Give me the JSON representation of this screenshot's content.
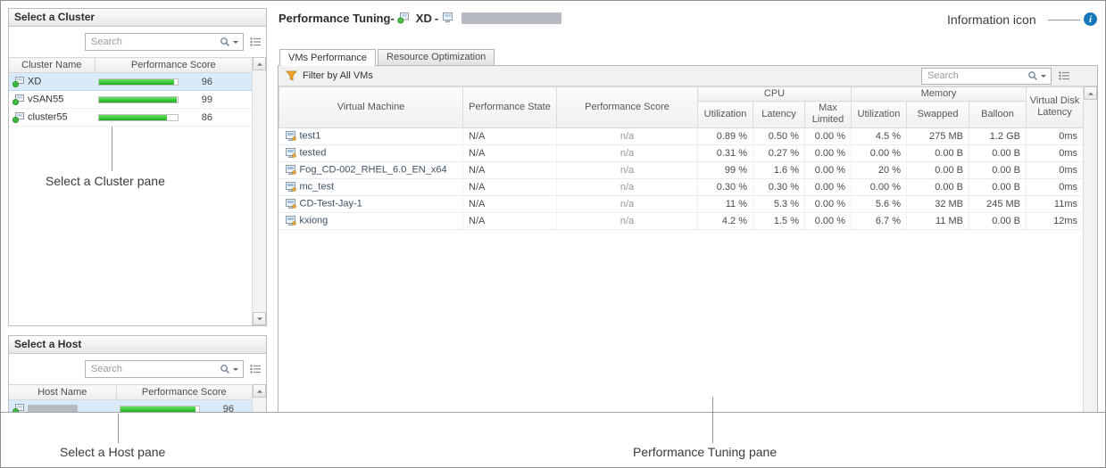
{
  "annotations": {
    "cluster_pane": "Select a Cluster pane",
    "host_pane": "Select a Host pane",
    "tuning_pane": "Performance Tuning pane",
    "info_icon": "Information icon"
  },
  "icons": {
    "info_glyph": "i"
  },
  "cluster_pane": {
    "title": "Select a Cluster",
    "search_placeholder": "Search",
    "columns": [
      "Cluster Name",
      "Performance Score"
    ],
    "rows": [
      {
        "name": "XD",
        "score": "96",
        "bar": 96,
        "selected": true
      },
      {
        "name": "vSAN55",
        "score": "99",
        "bar": 99,
        "selected": false
      },
      {
        "name": "cluster55",
        "score": "86",
        "bar": 86,
        "selected": false
      }
    ]
  },
  "host_pane": {
    "title": "Select a Host",
    "search_placeholder": "Search",
    "columns": [
      "Host Name",
      "Performance Score"
    ],
    "rows": [
      {
        "name": "",
        "redacted": true,
        "score": "96",
        "bar": 96,
        "selected": true
      }
    ]
  },
  "main": {
    "title_prefix": "Performance Tuning-",
    "cluster_name": "XD",
    "separator": "-",
    "tabs": [
      {
        "label": "VMs Performance",
        "active": true
      },
      {
        "label": "Resource Optimization",
        "active": false
      }
    ],
    "filter_label": "Filter by All VMs",
    "search_placeholder": "Search",
    "table": {
      "group_cpu": "CPU",
      "group_memory": "Memory",
      "col_vm": "Virtual Machine",
      "col_state": "Performance State",
      "col_score": "Performance Score",
      "col_cpu_util": "Utilization",
      "col_cpu_lat": "Latency",
      "col_cpu_max": "Max Limited",
      "col_mem_util": "Utilization",
      "col_mem_swapped": "Swapped",
      "col_mem_balloon": "Balloon",
      "col_vdisk": "Virtual Disk Latency",
      "rows": [
        {
          "name": "test1",
          "state": "N/A",
          "score": "n/a",
          "cpu_util": "0.89 %",
          "cpu_lat": "0.50 %",
          "cpu_max": "0.00 %",
          "mem_util": "4.5 %",
          "swapped": "275 MB",
          "balloon": "1.2 GB",
          "vdisk": "0ms"
        },
        {
          "name": "tested",
          "state": "N/A",
          "score": "n/a",
          "cpu_util": "0.31 %",
          "cpu_lat": "0.27 %",
          "cpu_max": "0.00 %",
          "mem_util": "0.00 %",
          "swapped": "0.00 B",
          "balloon": "0.00 B",
          "vdisk": "0ms"
        },
        {
          "name": "Fog_CD-002_RHEL_6.0_EN_x64",
          "state": "N/A",
          "score": "n/a",
          "cpu_util": "99 %",
          "cpu_lat": "1.6 %",
          "cpu_max": "0.00 %",
          "mem_util": "20 %",
          "swapped": "0.00 B",
          "balloon": "0.00 B",
          "vdisk": "0ms"
        },
        {
          "name": "mc_test",
          "state": "N/A",
          "score": "n/a",
          "cpu_util": "0.30 %",
          "cpu_lat": "0.30 %",
          "cpu_max": "0.00 %",
          "mem_util": "0.00 %",
          "swapped": "0.00 B",
          "balloon": "0.00 B",
          "vdisk": "0ms"
        },
        {
          "name": "CD-Test-Jay-1",
          "state": "N/A",
          "score": "n/a",
          "cpu_util": "11 %",
          "cpu_lat": "5.3 %",
          "cpu_max": "0.00 %",
          "mem_util": "5.6 %",
          "swapped": "32 MB",
          "balloon": "245 MB",
          "vdisk": "11ms"
        },
        {
          "name": "kxiong",
          "state": "N/A",
          "score": "n/a",
          "cpu_util": "4.2 %",
          "cpu_lat": "1.5 %",
          "cpu_max": "0.00 %",
          "mem_util": "6.7 %",
          "swapped": "11 MB",
          "balloon": "0.00 B",
          "vdisk": "12ms"
        }
      ]
    }
  }
}
